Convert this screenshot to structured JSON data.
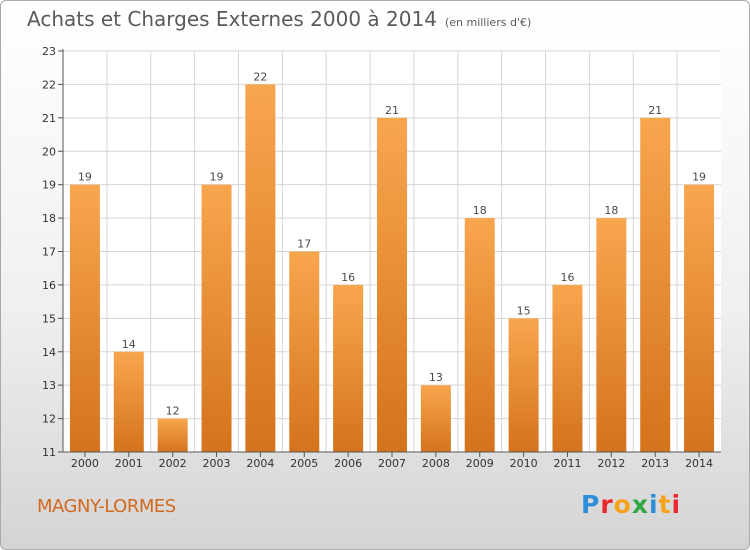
{
  "header": {
    "title": "Achats et Charges Externes 2000 à 2014",
    "subtitle": "(en milliers d'€)"
  },
  "footer": {
    "commune": "MAGNY-LORMES",
    "logo": {
      "text": "Proxiti",
      "letter_colors": [
        "#2e8fd8",
        "#e8282b",
        "#f7a21b",
        "#32a843",
        "#2e8fd8",
        "#f7a21b",
        "#e8282b"
      ]
    }
  },
  "colors": {
    "bar_light": "#f8a64e",
    "bar_dark": "#d4731c",
    "grid": "#d6d6d6",
    "axis": "#555555"
  },
  "chart_data": {
    "type": "bar",
    "title": "Achats et Charges Externes 2000 à 2014",
    "subtitle": "(en milliers d'€)",
    "categories": [
      "2000",
      "2001",
      "2002",
      "2003",
      "2004",
      "2005",
      "2006",
      "2007",
      "2008",
      "2009",
      "2010",
      "2011",
      "2012",
      "2013",
      "2014"
    ],
    "values": [
      19,
      14,
      12,
      19,
      22,
      17,
      16,
      21,
      13,
      18,
      15,
      16,
      18,
      21,
      19
    ],
    "ylim": [
      11,
      23
    ],
    "yticks": [
      11,
      12,
      13,
      14,
      15,
      16,
      17,
      18,
      19,
      20,
      21,
      22,
      23
    ],
    "grid": true,
    "data_labels": true
  }
}
